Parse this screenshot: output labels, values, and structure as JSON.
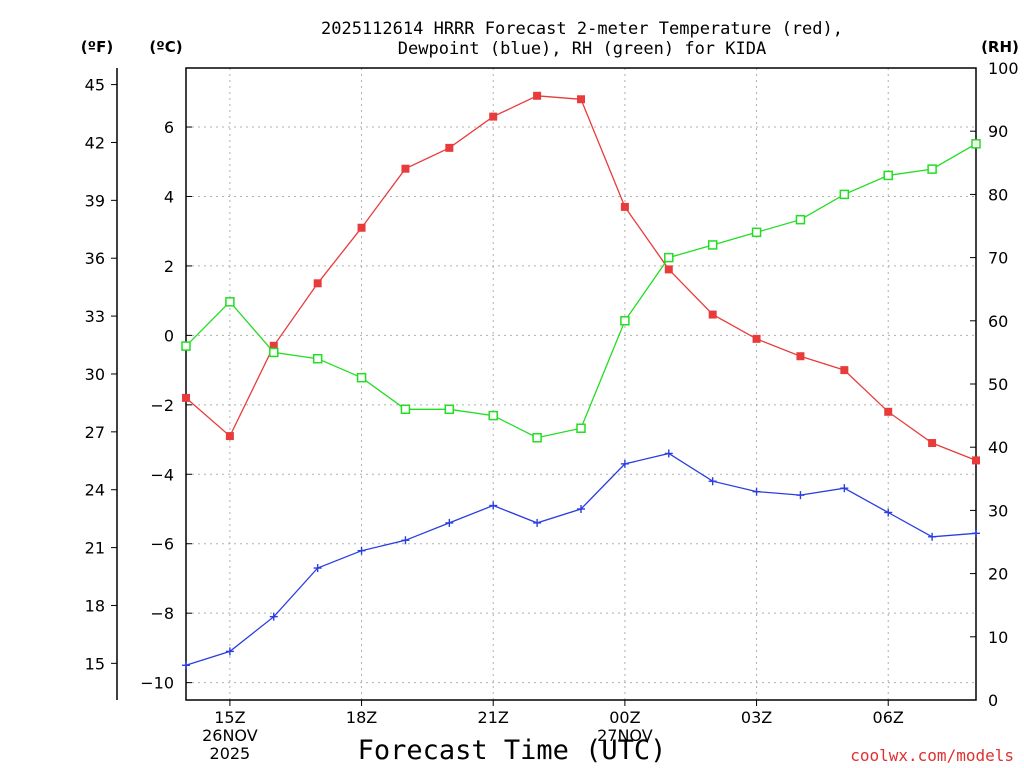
{
  "chart_data": {
    "type": "line",
    "title_line1": "2025112614 HRRR Forecast 2-meter Temperature (red),",
    "title_line2": "Dewpoint (blue), RH (green) for KIDA",
    "xlabel": "Forecast Time (UTC)",
    "credit": "coolwx.com/models",
    "units": {
      "fahrenheit": "(ºF)",
      "celsius": "(ºC)",
      "rh": "(RH)"
    },
    "x_hours": [
      14,
      15,
      16,
      17,
      18,
      19,
      20,
      21,
      22,
      23,
      24,
      25,
      26,
      27,
      28,
      29,
      30,
      31,
      32
    ],
    "x_range": [
      14,
      32
    ],
    "x_ticks": [
      {
        "hour": 15,
        "label": "15Z",
        "sub1": "26NOV",
        "sub2": "2025"
      },
      {
        "hour": 18,
        "label": "18Z",
        "sub1": "",
        "sub2": ""
      },
      {
        "hour": 21,
        "label": "21Z",
        "sub1": "",
        "sub2": ""
      },
      {
        "hour": 24,
        "label": "00Z",
        "sub1": "27NOV",
        "sub2": ""
      },
      {
        "hour": 27,
        "label": "03Z",
        "sub1": "",
        "sub2": ""
      },
      {
        "hour": 30,
        "label": "06Z",
        "sub1": "",
        "sub2": ""
      }
    ],
    "y_celsius_range": [
      -10.5,
      7.7
    ],
    "y_celsius_ticks": [
      "-10",
      "-8",
      "-6",
      "-4",
      "-2",
      "0",
      "2",
      "4",
      "6"
    ],
    "y_fahrenheit_ticks": [
      "15",
      "18",
      "21",
      "24",
      "27",
      "30",
      "33",
      "36",
      "39",
      "42",
      "45"
    ],
    "y_rh_range": [
      0,
      100
    ],
    "y_rh_ticks": [
      "0",
      "10",
      "20",
      "30",
      "40",
      "50",
      "60",
      "70",
      "80",
      "90",
      "100"
    ],
    "series": [
      {
        "name": "2-meter Temperature",
        "unit": "C",
        "color": "#e83c3c",
        "marker": "filled-square",
        "values": [
          -1.8,
          -2.9,
          -0.3,
          1.5,
          3.1,
          4.8,
          5.4,
          6.3,
          6.9,
          6.8,
          3.7,
          1.9,
          0.6,
          -0.1,
          -0.6,
          -1.0,
          -2.2,
          -3.1,
          -3.6
        ]
      },
      {
        "name": "Dewpoint",
        "unit": "C",
        "color": "#2a3ee0",
        "marker": "plus",
        "values": [
          -9.5,
          -9.1,
          -8.1,
          -6.7,
          -6.2,
          -5.9,
          -5.4,
          -4.9,
          -5.4,
          -5.0,
          -3.7,
          -3.4,
          -4.2,
          -4.5,
          -4.6,
          -4.4,
          -5.1,
          -5.8,
          -5.7
        ]
      },
      {
        "name": "RH",
        "unit": "%",
        "color": "#22dd22",
        "marker": "open-square",
        "values": [
          56,
          63,
          55,
          54,
          51,
          46,
          46,
          45,
          41.5,
          43,
          60,
          70,
          72,
          74,
          76,
          80,
          83,
          84,
          88
        ]
      }
    ]
  }
}
